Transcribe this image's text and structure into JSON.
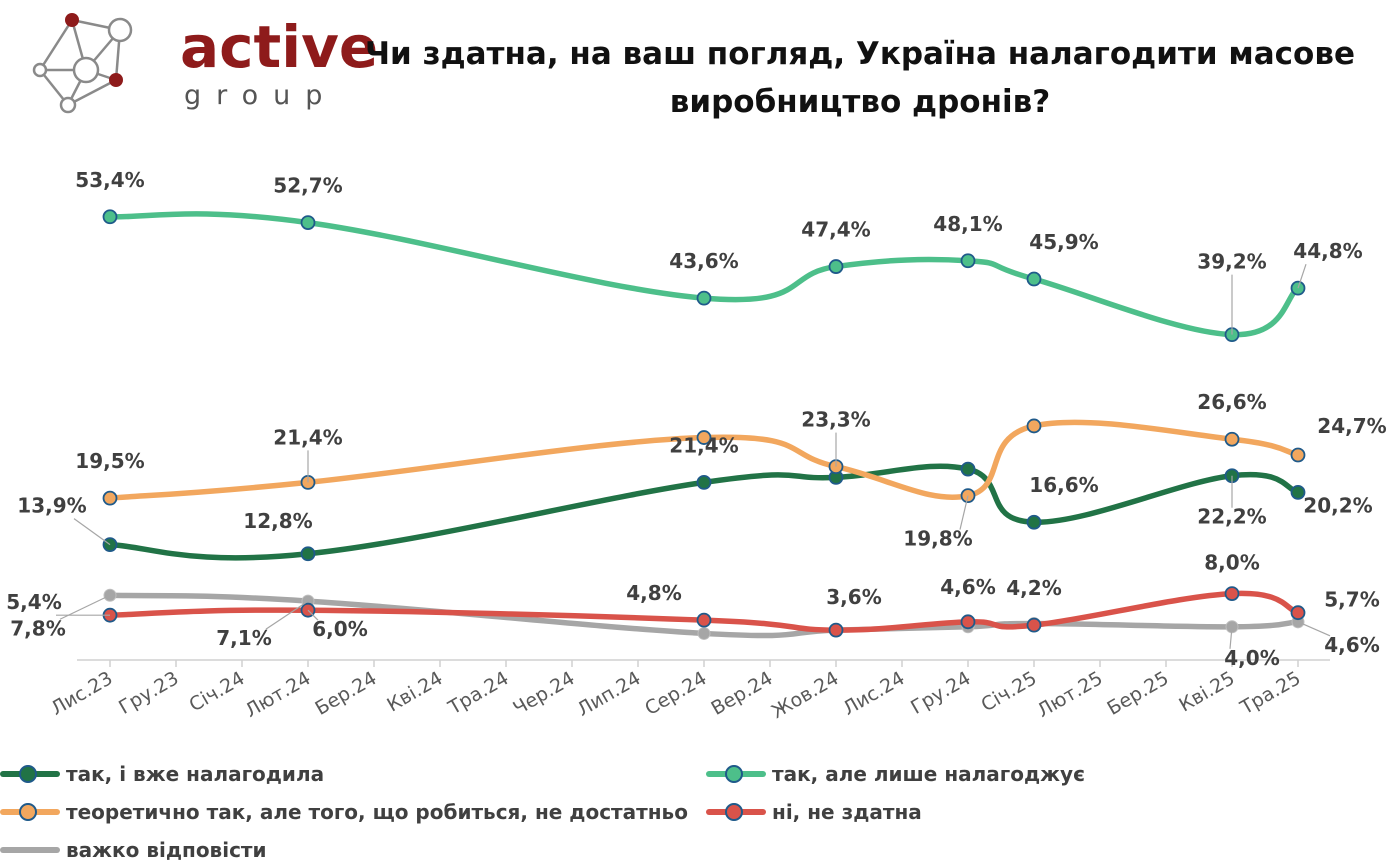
{
  "logo": {
    "word": "active",
    "sub": "group"
  },
  "title": "Чи здатна, на ваш погляд, Україна налагодити масове виробництво дронів?",
  "colors": {
    "dark_green": "#217346",
    "light_green": "#4dbf8a",
    "orange": "#f2a75e",
    "red": "#d9534a",
    "gray": "#a6a6a6",
    "logo_red": "#8e1b1b"
  },
  "chart_data": {
    "type": "line",
    "title": "Чи здатна, на ваш погляд, Україна налагодити масове виробництво дронів?",
    "xlabel": "",
    "ylabel": "",
    "ylim": [
      0,
      60
    ],
    "grid": false,
    "legend_position": "bottom",
    "categories": [
      "Лис.23",
      "Гру.23",
      "Січ.24",
      "Лют.24",
      "Бер.24",
      "Кві.24",
      "Тра.24",
      "Чер.24",
      "Лип.24",
      "Сер.24",
      "Вер.24",
      "Жов.24",
      "Лис.24",
      "Гру.24",
      "Січ.25",
      "Лют.25",
      "Бер.25",
      "Кві.25",
      "Тра.25"
    ],
    "series": [
      {
        "name": "так, але лише налагоджує",
        "color": "#4dbf8a",
        "points": [
          [
            0,
            53.4
          ],
          [
            3,
            52.7
          ],
          [
            9,
            43.6
          ],
          [
            11,
            47.4
          ],
          [
            13,
            48.1
          ],
          [
            14,
            45.9
          ],
          [
            17,
            39.2
          ],
          [
            18,
            44.8
          ]
        ],
        "labels": [
          "53,4%",
          "52,7%",
          "43,6%",
          "47,4%",
          "48,1%",
          "45,9%",
          "39,2%",
          "44,8%"
        ]
      },
      {
        "name": "теоретично так, але того, що робиться, не достатньо",
        "color": "#f2a75e",
        "points": [
          [
            0,
            19.5
          ],
          [
            3,
            21.4
          ],
          [
            9,
            26.8
          ],
          [
            11,
            23.3
          ],
          [
            13,
            19.8
          ],
          [
            14,
            28.2
          ],
          [
            17,
            26.6
          ],
          [
            18,
            24.7
          ]
        ],
        "labels": [
          "19,5%",
          "21,4%",
          "",
          "23,3%",
          "19,8%",
          "",
          "26,6%",
          "24,7%"
        ]
      },
      {
        "name": "так, і вже налагодила",
        "color": "#217346",
        "points": [
          [
            0,
            13.9
          ],
          [
            3,
            12.8
          ],
          [
            9,
            21.4
          ],
          [
            11,
            22.0
          ],
          [
            13,
            23.0
          ],
          [
            14,
            16.6
          ],
          [
            17,
            22.2
          ],
          [
            18,
            20.2
          ]
        ],
        "labels": [
          "13,9%",
          "12,8%",
          "21,4%",
          "",
          "",
          "16,6%",
          "22,2%",
          "20,2%"
        ]
      },
      {
        "name": "ні, не здатна",
        "color": "#d9534a",
        "points": [
          [
            0,
            5.4
          ],
          [
            3,
            6.0
          ],
          [
            9,
            4.8
          ],
          [
            11,
            3.6
          ],
          [
            13,
            4.6
          ],
          [
            14,
            4.2
          ],
          [
            17,
            8.0
          ],
          [
            18,
            5.7
          ]
        ],
        "labels": [
          "5,4%",
          "6,0%",
          "4,8%",
          "3,6%",
          "4,6%",
          "4,2%",
          "8,0%",
          "5,7%"
        ]
      },
      {
        "name": "важко відповісти",
        "color": "#a6a6a6",
        "points": [
          [
            0,
            7.8
          ],
          [
            3,
            7.1
          ],
          [
            9,
            3.2
          ],
          [
            11,
            3.6
          ],
          [
            13,
            4.0
          ],
          [
            14,
            4.4
          ],
          [
            17,
            4.0
          ],
          [
            18,
            4.6
          ]
        ],
        "labels": [
          "7,8%",
          "7,1%",
          "",
          "",
          "",
          "",
          "4,0%",
          "4,6%"
        ]
      }
    ]
  },
  "legend": {
    "items": [
      {
        "label": "так, і вже налагодила",
        "color": "#217346",
        "marker": true
      },
      {
        "label": "так, але лише налагоджує",
        "color": "#4dbf8a",
        "marker": true
      },
      {
        "label": "теоретично так, але того, що робиться, не достатньо",
        "color": "#f2a75e",
        "marker": true
      },
      {
        "label": "ні, не здатна",
        "color": "#d9534a",
        "marker": true
      },
      {
        "label": "важко відповісти",
        "color": "#a6a6a6",
        "marker": false
      }
    ]
  }
}
